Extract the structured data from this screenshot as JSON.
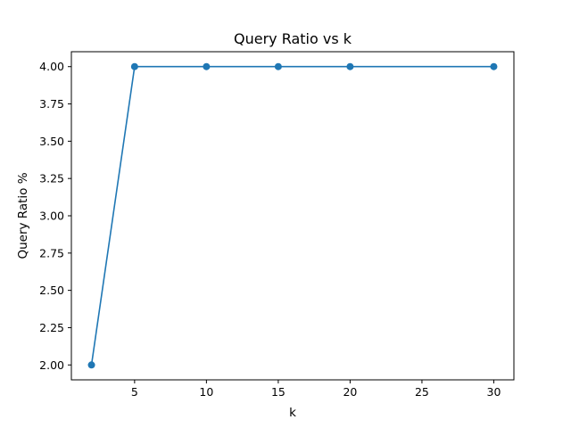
{
  "chart_data": {
    "type": "line",
    "title": "Query Ratio vs k",
    "xlabel": "k",
    "ylabel": "Query Ratio %",
    "x": [
      2,
      5,
      10,
      15,
      20,
      30
    ],
    "series": [
      {
        "values": [
          2.0,
          4.0,
          4.0,
          4.0,
          4.0,
          4.0
        ],
        "color": "#1f77b4",
        "marker": "circle"
      }
    ],
    "xlim": [
      0.6,
      31.4
    ],
    "ylim": [
      1.9,
      4.1
    ],
    "xticks": [
      5,
      10,
      15,
      20,
      25,
      30
    ],
    "xtick_labels": [
      "5",
      "10",
      "15",
      "20",
      "25",
      "30"
    ],
    "yticks": [
      2.0,
      2.25,
      2.5,
      2.75,
      3.0,
      3.25,
      3.5,
      3.75,
      4.0
    ],
    "ytick_labels": [
      "2.00",
      "2.25",
      "2.50",
      "2.75",
      "3.00",
      "3.25",
      "3.50",
      "3.75",
      "4.00"
    ],
    "grid": false,
    "legend": "none"
  }
}
